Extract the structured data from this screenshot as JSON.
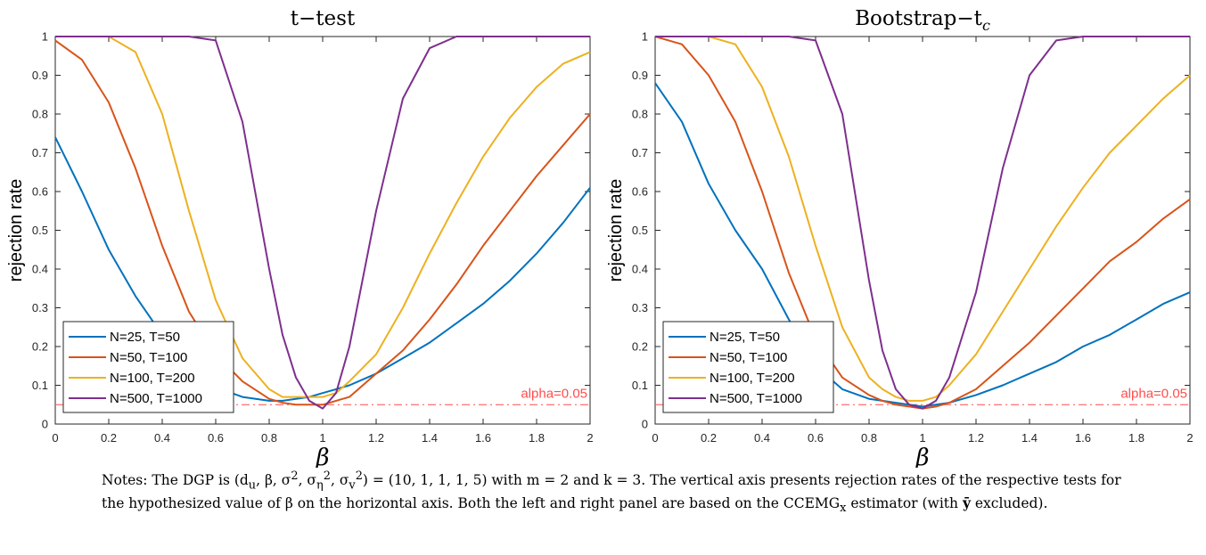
{
  "chart_data": [
    {
      "type": "line",
      "title": "t−test",
      "xlabel": "β",
      "ylabel": "rejection rate",
      "xlim": [
        0,
        2
      ],
      "ylim": [
        0,
        1
      ],
      "xticks": [
        "0",
        "0.2",
        "0.4",
        "0.6",
        "0.8",
        "1",
        "1.2",
        "1.4",
        "1.6",
        "1.8",
        "2"
      ],
      "yticks": [
        "0",
        "0.1",
        "0.2",
        "0.3",
        "0.4",
        "0.5",
        "0.6",
        "0.7",
        "0.8",
        "0.9",
        "1"
      ],
      "grid": false,
      "legend_position": "bottom-left",
      "reference_line": {
        "y": 0.05,
        "label": "alpha=0.05",
        "color": "#ff4d4d"
      },
      "x": [
        0,
        0.1,
        0.2,
        0.3,
        0.4,
        0.5,
        0.6,
        0.7,
        0.8,
        0.85,
        0.9,
        0.95,
        1,
        1.05,
        1.1,
        1.2,
        1.3,
        1.4,
        1.5,
        1.6,
        1.7,
        1.8,
        1.9,
        2
      ],
      "series": [
        {
          "name": "N=25, T=50",
          "color": "#0072BD",
          "values": [
            0.74,
            0.6,
            0.45,
            0.33,
            0.23,
            0.14,
            0.095,
            0.07,
            0.06,
            0.06,
            0.065,
            0.07,
            0.08,
            0.09,
            0.1,
            0.13,
            0.17,
            0.21,
            0.26,
            0.31,
            0.37,
            0.44,
            0.52,
            0.61
          ]
        },
        {
          "name": "N=50, T=100",
          "color": "#D95319",
          "values": [
            0.99,
            0.94,
            0.83,
            0.66,
            0.46,
            0.29,
            0.18,
            0.11,
            0.065,
            0.055,
            0.05,
            0.05,
            0.05,
            0.06,
            0.07,
            0.13,
            0.19,
            0.27,
            0.36,
            0.46,
            0.55,
            0.64,
            0.72,
            0.8
          ]
        },
        {
          "name": "N=100, T=200",
          "color": "#EDB120",
          "values": [
            1,
            1,
            1,
            0.96,
            0.8,
            0.55,
            0.32,
            0.17,
            0.09,
            0.07,
            0.07,
            0.07,
            0.07,
            0.08,
            0.11,
            0.18,
            0.3,
            0.44,
            0.57,
            0.69,
            0.79,
            0.87,
            0.93,
            0.96
          ]
        },
        {
          "name": "N=500, T=1000",
          "color": "#7E2F8E",
          "values": [
            1,
            1,
            1,
            1,
            1,
            1,
            0.99,
            0.78,
            0.4,
            0.23,
            0.12,
            0.06,
            0.04,
            0.08,
            0.2,
            0.55,
            0.84,
            0.97,
            1,
            1,
            1,
            1,
            1,
            1
          ]
        }
      ]
    },
    {
      "type": "line",
      "title": "Bootstrap−t",
      "title_subscript": "c",
      "xlabel": "β",
      "ylabel": "rejection rate",
      "xlim": [
        0,
        2
      ],
      "ylim": [
        0,
        1
      ],
      "xticks": [
        "0",
        "0.2",
        "0.4",
        "0.6",
        "0.8",
        "1",
        "1.2",
        "1.4",
        "1.6",
        "1.8",
        "2"
      ],
      "yticks": [
        "0",
        "0.1",
        "0.2",
        "0.3",
        "0.4",
        "0.5",
        "0.6",
        "0.7",
        "0.8",
        "0.9",
        "1"
      ],
      "grid": false,
      "legend_position": "bottom-left",
      "reference_line": {
        "y": 0.05,
        "label": "alpha=0.05",
        "color": "#ff4d4d"
      },
      "x": [
        0,
        0.1,
        0.2,
        0.3,
        0.4,
        0.5,
        0.6,
        0.7,
        0.8,
        0.85,
        0.9,
        0.95,
        1,
        1.05,
        1.1,
        1.2,
        1.3,
        1.4,
        1.5,
        1.6,
        1.7,
        1.8,
        1.9,
        2
      ],
      "series": [
        {
          "name": "N=25, T=50",
          "color": "#0072BD",
          "values": [
            0.88,
            0.78,
            0.62,
            0.5,
            0.4,
            0.27,
            0.15,
            0.09,
            0.065,
            0.06,
            0.055,
            0.05,
            0.045,
            0.05,
            0.055,
            0.075,
            0.1,
            0.13,
            0.16,
            0.2,
            0.23,
            0.27,
            0.31,
            0.34
          ]
        },
        {
          "name": "N=50, T=100",
          "color": "#D95319",
          "values": [
            1,
            0.98,
            0.9,
            0.78,
            0.6,
            0.39,
            0.22,
            0.12,
            0.075,
            0.06,
            0.05,
            0.045,
            0.04,
            0.045,
            0.055,
            0.09,
            0.15,
            0.21,
            0.28,
            0.35,
            0.42,
            0.47,
            0.53,
            0.58
          ]
        },
        {
          "name": "N=100, T=200",
          "color": "#EDB120",
          "values": [
            1,
            1,
            1,
            0.98,
            0.87,
            0.69,
            0.46,
            0.25,
            0.12,
            0.09,
            0.07,
            0.06,
            0.06,
            0.07,
            0.1,
            0.18,
            0.29,
            0.4,
            0.51,
            0.61,
            0.7,
            0.77,
            0.84,
            0.9
          ]
        },
        {
          "name": "N=500, T=1000",
          "color": "#7E2F8E",
          "values": [
            1,
            1,
            1,
            1,
            1,
            1,
            0.99,
            0.8,
            0.37,
            0.19,
            0.09,
            0.05,
            0.04,
            0.06,
            0.12,
            0.34,
            0.66,
            0.9,
            0.99,
            1,
            1,
            1,
            1,
            1
          ]
        }
      ]
    }
  ],
  "notes": {
    "text1": "Notes: The DGP is (d",
    "s_u": "u",
    "text2": ", β, σ",
    "p1": "2",
    "text3": ", σ",
    "s_eta": "η",
    "p2": "2",
    "text4": ", σ",
    "s_v": "v",
    "p3": "2",
    "text5": ") = (10, 1, 1, 1, 5) with m = 2 and k = 3. The vertical axis presents rejection rates of the respective tests for the hypothesized value of β on the horizontal axis. Both the left and right panel are based on the CCEMG",
    "s_x": "x",
    "text6": " estimator (with ",
    "ybar": "ȳ",
    "text7": " excluded)."
  }
}
